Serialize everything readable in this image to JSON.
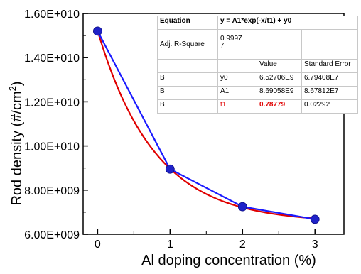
{
  "chart_data": {
    "type": "scatter",
    "title": "",
    "xlabel": "Al doping concentration (%)",
    "ylabel_text": "Rod density (#/cm",
    "ylabel_sup": "2",
    "ylabel_close": ")",
    "xlim": [
      -0.2,
      3.4
    ],
    "ylim": [
      6000000000.0,
      16000000000.0
    ],
    "x_ticks": [
      0,
      1,
      2,
      3
    ],
    "x_tick_labels": [
      "0",
      "1",
      "2",
      "3"
    ],
    "y_ticks": [
      6000000000.0,
      8000000000.0,
      10000000000.0,
      12000000000.0,
      14000000000.0,
      16000000000.0
    ],
    "y_tick_labels": [
      "6.00E+009",
      "8.00E+009",
      "1.00E+010",
      "1.20E+010",
      "1.40E+010",
      "1.60E+010"
    ],
    "grid": false,
    "series": [
      {
        "kind": "points_and_line",
        "color": "#1a1aff",
        "marker_color": "#1f22c8",
        "x": [
          0,
          1,
          2,
          3
        ],
        "y": [
          15200000000.0,
          8950000000.0,
          7250000000.0,
          6680000000.0
        ]
      },
      {
        "kind": "exponential_fit",
        "color": "#e00000",
        "equation": "y = A1*exp(-x/t1) + y0",
        "params": {
          "y0": 6527060000.0,
          "A1": 8690580000.0,
          "t1": 0.78779
        }
      }
    ],
    "fit_table": {
      "equation_label": "Equation",
      "equation": "y = A1*exp(-x/t1) + y0",
      "adj_r_square_label": "Adj. R-Square",
      "adj_r_square_value": "0.9997",
      "adj_r_square_value_overflow": "7",
      "value_header": "Value",
      "std_error_header": "Standard Error",
      "rows": [
        {
          "dataset": "B",
          "param": "y0",
          "value": "6.52706E9",
          "error": "6.79408E7",
          "highlight": false
        },
        {
          "dataset": "B",
          "param": "A1",
          "value": "8.69058E9",
          "error": "8.67812E7",
          "highlight": false
        },
        {
          "dataset": "B",
          "param": "t1",
          "value": "0.78779",
          "error": "0.02292",
          "highlight": true
        }
      ]
    }
  }
}
